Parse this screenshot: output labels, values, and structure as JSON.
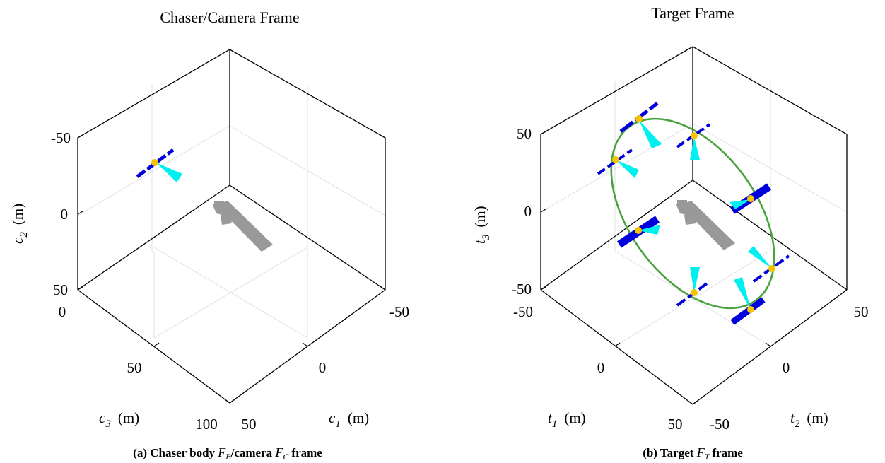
{
  "chart_data": [
    {
      "type": "scatter",
      "title": "Chaser/Camera Frame",
      "axes": {
        "x_label": "c",
        "x_sub": "1",
        "x_unit": "(m)",
        "x_ticks": [
          "-50",
          "0",
          "50"
        ],
        "z_label": "c",
        "z_sub": "3",
        "z_unit": "(m)",
        "z_ticks": [
          "0",
          "50",
          "100"
        ],
        "y_label": "c",
        "y_sub": "2",
        "y_unit": "(m)",
        "y_ticks": [
          "-50",
          "0",
          "50"
        ]
      },
      "grid": true,
      "caption": {
        "prefix": "(a) Chaser body",
        "f1": "F",
        "f1_sub": "B",
        "mid": "/camera",
        "f2": "F",
        "f2_sub": "C",
        "suffix": "frame"
      },
      "objects": [
        {
          "name": "target spacecraft",
          "color": "#0000dd"
        },
        {
          "name": "camera field of view",
          "color": "#00f0f0"
        },
        {
          "name": "chaser",
          "color": "#999999"
        }
      ]
    },
    {
      "type": "line",
      "title": "Target Frame",
      "axes": {
        "x_label": "t",
        "x_sub": "1",
        "x_unit": "(m)",
        "x_ticks": [
          "-50",
          "0",
          "50"
        ],
        "z_label": "t",
        "z_sub": "2",
        "z_unit": "(m)",
        "z_ticks": [
          "-50",
          "0",
          "50"
        ],
        "y_label": "t",
        "y_sub": "3",
        "y_unit": "(m)",
        "y_ticks": [
          "50",
          "0",
          "-50"
        ]
      },
      "grid": true,
      "caption": {
        "prefix": "(b) Target",
        "f1": "F",
        "f1_sub": "T",
        "suffix": "frame"
      },
      "trajectory": {
        "name": "relative orbit",
        "color": "#4aa23e",
        "shape": "ellipse"
      },
      "satellite_positions": 8,
      "objects": [
        {
          "name": "chaser spacecraft",
          "color": "#0000dd"
        },
        {
          "name": "camera field of view",
          "color": "#00f0f0"
        },
        {
          "name": "position marker",
          "color": "#f5c400"
        },
        {
          "name": "target",
          "color": "#999999"
        }
      ]
    }
  ]
}
